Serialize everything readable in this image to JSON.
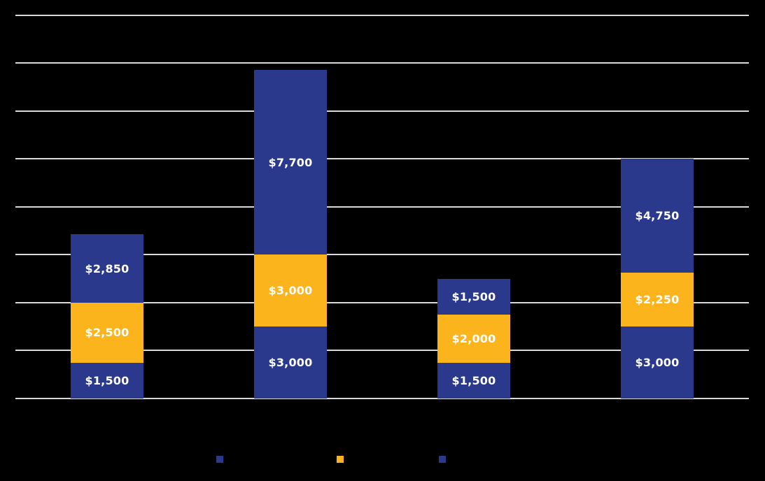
{
  "canvas": {
    "background": "#000000"
  },
  "chart_data": {
    "type": "bar",
    "stacked": true,
    "title": "",
    "xlabel": "",
    "ylabel": "",
    "categories": [
      "",
      "",
      "",
      ""
    ],
    "series": [
      {
        "name": "",
        "color": "#2B398C",
        "values": [
          1500,
          3000,
          1500,
          3000
        ],
        "data_labels": [
          "$1,500",
          "$3,000",
          "$1,500",
          "$3,000"
        ]
      },
      {
        "name": "",
        "color": "#FBB41C",
        "values": [
          2500,
          3000,
          2000,
          2250
        ],
        "data_labels": [
          "$2,500",
          "$3,000",
          "$2,000",
          "$2,250"
        ]
      },
      {
        "name": "",
        "color": "#2B398C",
        "values": [
          2850,
          7700,
          1500,
          4750
        ],
        "data_labels": [
          "$2,850",
          "$7,700",
          "$1,500",
          "$4,750"
        ]
      }
    ],
    "ylim": [
      0,
      16000
    ],
    "gridline_interval": 2000,
    "grid_on": true,
    "gridline_color": "#D9D9D9",
    "data_label_color": "#FFFFFF",
    "axis_tick_labels_visible": false,
    "legend_position": "bottom",
    "legend": [
      {
        "label": "",
        "color": "#2B398C"
      },
      {
        "label": "",
        "color": "#FBB41C"
      },
      {
        "label": "",
        "color": "#2B398C"
      }
    ]
  }
}
